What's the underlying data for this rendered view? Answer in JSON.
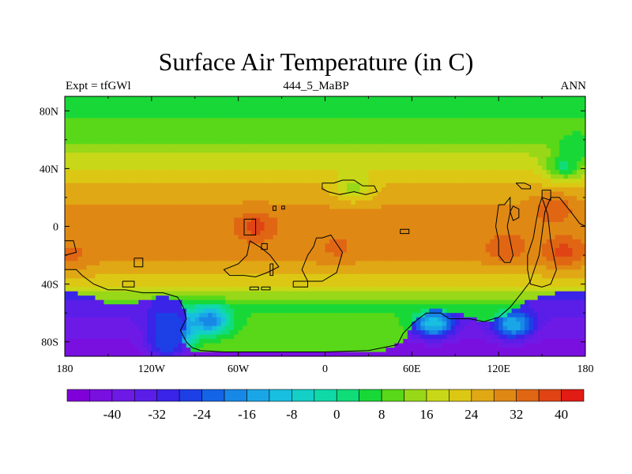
{
  "title": "Surface Air Temperature (in C)",
  "subtitle_left": "Expt = tfGWl",
  "subtitle_center": "444_5_MaBP",
  "subtitle_right": "ANN",
  "axes": {
    "x_ticks": [
      {
        "lon": -180,
        "label": "180"
      },
      {
        "lon": -120,
        "label": "120W"
      },
      {
        "lon": -60,
        "label": "60W"
      },
      {
        "lon": 0,
        "label": "0"
      },
      {
        "lon": 60,
        "label": "60E"
      },
      {
        "lon": 120,
        "label": "120E"
      },
      {
        "lon": 180,
        "label": "180"
      }
    ],
    "y_ticks": [
      {
        "lat": 80,
        "label": "80N"
      },
      {
        "lat": 40,
        "label": "40N"
      },
      {
        "lat": 0,
        "label": "0"
      },
      {
        "lat": -40,
        "label": "40S"
      },
      {
        "lat": -80,
        "label": "80S"
      }
    ],
    "lon_range": [
      -180,
      180
    ],
    "lat_range": [
      -90,
      90
    ]
  },
  "colorbar": {
    "colors": [
      "#7f00d9",
      "#7a10e0",
      "#6e1ae6",
      "#5a1ee8",
      "#3a24e8",
      "#1d3fe6",
      "#1464e6",
      "#1888e6",
      "#1aa6e6",
      "#18bfe0",
      "#14cfc8",
      "#10d9a8",
      "#10dc78",
      "#18d838",
      "#58d818",
      "#98d818",
      "#c8d818",
      "#dcc814",
      "#e0a814",
      "#e08814",
      "#e06614",
      "#e04414",
      "#e01c14"
    ],
    "labels": [
      "-40",
      "-32",
      "-24",
      "-16",
      "-8",
      "0",
      "8",
      "16",
      "24",
      "32",
      "40"
    ],
    "label_values": [
      -40,
      -32,
      -24,
      -16,
      -8,
      0,
      8,
      16,
      24,
      32,
      40
    ],
    "min_value": -48,
    "step": 4
  },
  "map_data": {
    "variable": "Surface Air Temperature",
    "units": "C",
    "zonal_temperature_profile": [
      {
        "lat": 90,
        "temp": 6
      },
      {
        "lat": 80,
        "temp": 7
      },
      {
        "lat": 70,
        "temp": 9
      },
      {
        "lat": 60,
        "temp": 11
      },
      {
        "lat": 50,
        "temp": 16
      },
      {
        "lat": 40,
        "temp": 20
      },
      {
        "lat": 30,
        "temp": 24
      },
      {
        "lat": 20,
        "temp": 27
      },
      {
        "lat": 10,
        "temp": 29
      },
      {
        "lat": 0,
        "temp": 30
      },
      {
        "lat": -10,
        "temp": 30
      },
      {
        "lat": -20,
        "temp": 29
      },
      {
        "lat": -30,
        "temp": 26
      },
      {
        "lat": -40,
        "temp": 21
      },
      {
        "lat": -50,
        "temp": 13
      },
      {
        "lat": -60,
        "temp": 2
      },
      {
        "lat": -70,
        "temp": -30
      },
      {
        "lat": -80,
        "temp": -40
      },
      {
        "lat": -90,
        "temp": -42
      }
    ],
    "southern_land_mask": [
      [
        -180,
        -46
      ],
      [
        -172,
        -46
      ],
      [
        -162,
        -48
      ],
      [
        -155,
        -52
      ],
      [
        -148,
        -55
      ],
      [
        -140,
        -55
      ],
      [
        -132,
        -53
      ],
      [
        -122,
        -50
      ],
      [
        -112,
        -49
      ],
      [
        -102,
        -50
      ],
      [
        -98,
        -56
      ],
      [
        -95,
        -64
      ],
      [
        -97,
        -72
      ],
      [
        -100,
        -80
      ],
      [
        -92,
        -86
      ],
      [
        -60,
        -87
      ],
      [
        0,
        -87
      ],
      [
        40,
        -86
      ],
      [
        55,
        -80
      ],
      [
        62,
        -66
      ],
      [
        72,
        -58
      ],
      [
        90,
        -59
      ],
      [
        100,
        -64
      ],
      [
        115,
        -66
      ],
      [
        128,
        -60
      ],
      [
        140,
        -52
      ],
      [
        150,
        -48
      ],
      [
        162,
        -46
      ],
      [
        172,
        -46
      ],
      [
        180,
        -46
      ],
      [
        180,
        -90
      ],
      [
        -180,
        -90
      ]
    ],
    "coastlines": [
      [
        [
          -180,
          -30
        ],
        [
          -172,
          -30
        ],
        [
          -168,
          -34
        ],
        [
          -160,
          -40
        ],
        [
          -150,
          -44
        ],
        [
          -138,
          -44
        ],
        [
          -126,
          -46
        ],
        [
          -112,
          -46
        ],
        [
          -102,
          -49
        ],
        [
          -98,
          -56
        ],
        [
          -96,
          -64
        ],
        [
          -100,
          -72
        ],
        [
          -96,
          -80
        ],
        [
          -92,
          -84
        ],
        [
          -86,
          -86
        ],
        [
          -70,
          -87
        ],
        [
          -40,
          -87
        ],
        [
          0,
          -87
        ],
        [
          30,
          -86
        ],
        [
          50,
          -82
        ],
        [
          54,
          -74
        ],
        [
          62,
          -66
        ],
        [
          70,
          -60
        ],
        [
          80,
          -60
        ],
        [
          86,
          -64
        ],
        [
          100,
          -64
        ],
        [
          110,
          -66
        ],
        [
          120,
          -63
        ],
        [
          128,
          -56
        ],
        [
          136,
          -46
        ],
        [
          142,
          -38
        ],
        [
          148,
          -20
        ],
        [
          150,
          -5
        ],
        [
          152,
          10
        ],
        [
          156,
          20
        ],
        [
          162,
          20
        ],
        [
          170,
          10
        ],
        [
          176,
          2
        ],
        [
          180,
          0
        ]
      ],
      [
        [
          -180,
          -10
        ],
        [
          -174,
          -10
        ],
        [
          -172,
          -18
        ],
        [
          -180,
          -20
        ]
      ],
      [
        [
          -132,
          -22
        ],
        [
          -126,
          -22
        ],
        [
          -126,
          -28
        ],
        [
          -132,
          -28
        ],
        [
          -132,
          -22
        ]
      ],
      [
        [
          -140,
          -38
        ],
        [
          -132,
          -38
        ],
        [
          -132,
          -42
        ],
        [
          -140,
          -42
        ],
        [
          -140,
          -38
        ]
      ],
      [
        [
          -56,
          5
        ],
        [
          -48,
          5
        ],
        [
          -48,
          -6
        ],
        [
          -56,
          -6
        ],
        [
          -56,
          5
        ]
      ],
      [
        [
          -52,
          -10
        ],
        [
          -44,
          -15
        ],
        [
          -38,
          -20
        ],
        [
          -32,
          -28
        ],
        [
          -40,
          -32
        ],
        [
          -48,
          -35
        ],
        [
          -56,
          -34
        ],
        [
          -66,
          -34
        ],
        [
          -70,
          -30
        ],
        [
          -60,
          -26
        ],
        [
          -54,
          -20
        ],
        [
          -52,
          -10
        ]
      ],
      [
        [
          -44,
          -12
        ],
        [
          -40,
          -12
        ],
        [
          -40,
          -16
        ],
        [
          -44,
          -16
        ],
        [
          -44,
          -12
        ]
      ],
      [
        [
          -38,
          -26
        ],
        [
          -36,
          -26
        ],
        [
          -36,
          -34
        ],
        [
          -38,
          -34
        ],
        [
          -38,
          -26
        ]
      ],
      [
        [
          -36,
          14
        ],
        [
          -34,
          14
        ],
        [
          -34,
          11
        ],
        [
          -36,
          11
        ],
        [
          -36,
          14
        ]
      ],
      [
        [
          -30,
          14
        ],
        [
          -28,
          14
        ],
        [
          -28,
          12
        ],
        [
          -30,
          12
        ],
        [
          -30,
          14
        ]
      ],
      [
        [
          -6,
          -8
        ],
        [
          -2,
          -8
        ],
        [
          4,
          -6
        ],
        [
          8,
          -12
        ],
        [
          12,
          -18
        ],
        [
          10,
          -25
        ],
        [
          8,
          -32
        ],
        [
          -2,
          -38
        ],
        [
          -12,
          -38
        ],
        [
          -16,
          -30
        ],
        [
          -12,
          -20
        ],
        [
          -8,
          -14
        ],
        [
          -6,
          -8
        ]
      ],
      [
        [
          -44,
          -42
        ],
        [
          -38,
          -42
        ],
        [
          -38,
          -44
        ],
        [
          -44,
          -44
        ],
        [
          -44,
          -42
        ]
      ],
      [
        [
          -52,
          -42
        ],
        [
          -46,
          -42
        ],
        [
          -46,
          -44
        ],
        [
          -52,
          -44
        ],
        [
          -52,
          -42
        ]
      ],
      [
        [
          -22,
          -38
        ],
        [
          -12,
          -38
        ],
        [
          -12,
          -42
        ],
        [
          -22,
          -42
        ],
        [
          -22,
          -38
        ]
      ],
      [
        [
          -2,
          30
        ],
        [
          6,
          30
        ],
        [
          12,
          32
        ],
        [
          20,
          32
        ],
        [
          26,
          28
        ],
        [
          34,
          28
        ],
        [
          36,
          24
        ],
        [
          28,
          22
        ],
        [
          20,
          24
        ],
        [
          10,
          22
        ],
        [
          2,
          24
        ],
        [
          -2,
          26
        ],
        [
          -2,
          30
        ]
      ],
      [
        [
          52,
          -2
        ],
        [
          58,
          -2
        ],
        [
          58,
          -5
        ],
        [
          52,
          -5
        ],
        [
          52,
          -2
        ]
      ],
      [
        [
          120,
          15
        ],
        [
          124,
          15
        ],
        [
          128,
          20
        ],
        [
          128,
          10
        ],
        [
          126,
          0
        ],
        [
          128,
          -10
        ],
        [
          130,
          -20
        ],
        [
          128,
          -25
        ],
        [
          124,
          -25
        ],
        [
          120,
          -20
        ],
        [
          120,
          -10
        ],
        [
          118,
          0
        ],
        [
          120,
          15
        ]
      ],
      [
        [
          128,
          10
        ],
        [
          130,
          14
        ],
        [
          134,
          12
        ],
        [
          134,
          6
        ],
        [
          130,
          4
        ],
        [
          128,
          10
        ]
      ],
      [
        [
          132,
          30
        ],
        [
          138,
          30
        ],
        [
          142,
          28
        ],
        [
          142,
          26
        ],
        [
          136,
          26
        ],
        [
          132,
          30
        ]
      ],
      [
        [
          150,
          25
        ],
        [
          156,
          25
        ],
        [
          156,
          18
        ],
        [
          150,
          20
        ],
        [
          150,
          25
        ]
      ],
      [
        [
          150,
          20
        ],
        [
          154,
          8
        ],
        [
          156,
          -10
        ],
        [
          158,
          -20
        ],
        [
          160,
          -30
        ],
        [
          156,
          -40
        ],
        [
          150,
          -42
        ],
        [
          142,
          -40
        ],
        [
          140,
          -30
        ],
        [
          140,
          -20
        ],
        [
          144,
          -8
        ],
        [
          146,
          4
        ],
        [
          148,
          14
        ],
        [
          150,
          20
        ]
      ]
    ],
    "hotspots": [
      {
        "lon": -48,
        "lat": 0,
        "temp": 38
      },
      {
        "lon": 125,
        "lat": -15,
        "temp": 36
      },
      {
        "lon": 165,
        "lat": -18,
        "temp": 38
      },
      {
        "lon": 158,
        "lat": 12,
        "temp": 36
      },
      {
        "lon": -175,
        "lat": -20,
        "temp": 33
      },
      {
        "lon": 8,
        "lat": -15,
        "temp": 33
      },
      {
        "lon": 80,
        "lat": -5,
        "temp": 32
      },
      {
        "lon": 95,
        "lat": 0,
        "temp": 31
      },
      {
        "lon": 20,
        "lat": 27,
        "temp": 15
      },
      {
        "lon": 174,
        "lat": 55,
        "temp": 4
      },
      {
        "lon": 166,
        "lat": 42,
        "temp": 3
      },
      {
        "lon": -80,
        "lat": -65,
        "temp": -20
      },
      {
        "lon": -110,
        "lat": -65,
        "temp": -25
      },
      {
        "lon": -105,
        "lat": -72,
        "temp": -26
      },
      {
        "lon": -110,
        "lat": -82,
        "temp": -24
      },
      {
        "lon": 75,
        "lat": -67,
        "temp": -8
      },
      {
        "lon": 130,
        "lat": -68,
        "temp": -12
      }
    ]
  }
}
